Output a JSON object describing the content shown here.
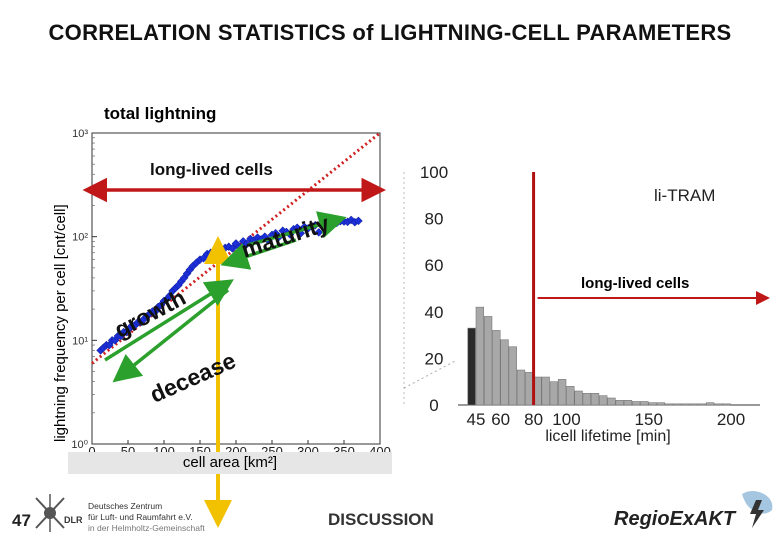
{
  "slide": {
    "title": "CORRELATION STATISTICS of LIGHTNING-CELL PARAMETERS",
    "page_number": "47",
    "footer_center": "DISCUSSION",
    "footer_logo_lines": [
      "Deutsches Zentrum",
      "für Luft- und Raumfahrt e.V.",
      "in der Helmholtz-Gemeinschaft"
    ],
    "footer_logo_abbr": "DLR",
    "footer_right_logo": "RegioExAKT"
  },
  "colors": {
    "data_blue": "#1c2fd6",
    "fit_red": "#d02020",
    "arrow_green": "#2ca02c",
    "arrow_orange": "#f2c200",
    "threshold_red": "#b01010",
    "bar_gray": "#a8a8a8",
    "bar_dark": "#2a2a2a"
  },
  "chart_data": [
    {
      "type": "scatter",
      "subtitle": "total lightning",
      "xlabel": "cell area [km²]",
      "ylabel": "lightning frequency per cell [cnt/cell]",
      "xlim": [
        0,
        400
      ],
      "ylim": [
        1,
        1000
      ],
      "yscale": "log",
      "xticks": [
        "0",
        "50",
        "100",
        "150",
        "200",
        "250",
        "300",
        "350",
        "400"
      ],
      "yticks": [
        "10⁰",
        "10¹",
        "10²",
        "10³"
      ],
      "annotations": {
        "long_lived": "long-lived cells",
        "growth": "growth",
        "maturity": "maturity",
        "decease": "decease"
      },
      "x": [
        12,
        16,
        20,
        24,
        28,
        32,
        36,
        40,
        44,
        48,
        52,
        56,
        60,
        64,
        68,
        72,
        76,
        80,
        84,
        88,
        92,
        96,
        100,
        104,
        108,
        112,
        116,
        120,
        124,
        128,
        132,
        136,
        140,
        145,
        150,
        155,
        160,
        165,
        170,
        175,
        180,
        185,
        190,
        195,
        200,
        205,
        210,
        215,
        220,
        225,
        230,
        235,
        240,
        245,
        250,
        255,
        260,
        265,
        270,
        275,
        280,
        285,
        290,
        295,
        300,
        305,
        310,
        315,
        320,
        325,
        330,
        335,
        340,
        345,
        350,
        355,
        360,
        365,
        370
      ],
      "y": [
        8,
        8.5,
        9,
        9,
        10,
        10,
        11,
        11,
        12,
        12,
        13,
        14,
        14,
        15,
        15,
        16,
        17,
        18,
        19,
        19,
        21,
        22,
        24,
        25,
        27,
        30,
        32,
        34,
        37,
        40,
        44,
        48,
        52,
        56,
        60,
        62,
        68,
        70,
        66,
        74,
        72,
        78,
        80,
        77,
        86,
        79,
        90,
        85,
        95,
        92,
        98,
        94,
        100,
        92,
        104,
        108,
        100,
        114,
        111,
        105,
        118,
        122,
        108,
        124,
        120,
        127,
        129,
        110,
        132,
        135,
        130,
        138,
        136,
        141,
        140,
        139,
        145,
        138,
        142
      ],
      "fit_line": {
        "x": [
          0,
          400
        ],
        "y": [
          6.0,
          1000
        ]
      },
      "threshold_x": 175
    },
    {
      "type": "bar",
      "title": "li-TRAM",
      "xlabel": "licell lifetime [min]",
      "ylabel": "",
      "ylim": [
        0,
        100
      ],
      "xticks": [
        "45",
        "60",
        "80",
        "100",
        "150",
        "200"
      ],
      "yticks": [
        "0",
        "20",
        "40",
        "60",
        "80",
        "100"
      ],
      "annotation": "long-lived cells",
      "bin_width_min": 5,
      "bin_starts": [
        40,
        45,
        50,
        55,
        60,
        65,
        70,
        75,
        80,
        85,
        90,
        95,
        100,
        105,
        110,
        115,
        120,
        125,
        130,
        135,
        140,
        145,
        150,
        155,
        160,
        165,
        170,
        175,
        180,
        185,
        190,
        195
      ],
      "values": [
        33,
        42,
        38,
        32,
        28,
        25,
        15,
        14,
        12,
        12,
        10,
        11,
        8,
        6,
        5,
        5,
        4,
        3,
        2,
        2,
        1.5,
        1.5,
        1,
        1,
        0.5,
        0.5,
        0.5,
        0.5,
        0.5,
        1,
        0.5,
        0.5
      ],
      "threshold_x": 80
    }
  ]
}
